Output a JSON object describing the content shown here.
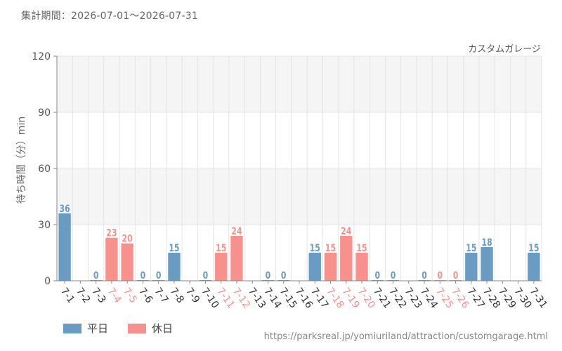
{
  "header": {
    "period": "集計期間：2026-07-01～2026-07-31"
  },
  "legend": {
    "weekday": "平日",
    "holiday": "休日"
  },
  "colors": {
    "weekday": "#6a9bc3",
    "holiday": "#f6918e",
    "grid": "#e4e4e4",
    "band": "#f5f5f5",
    "axis": "#888888"
  },
  "source": "https://parksreal.jp/yomiuriland/attraction/customgarage.html",
  "chart_data": {
    "type": "bar",
    "title": "カスタムガレージ",
    "ylabel": "待ち時間（分）min",
    "xlabel": "",
    "ylim": [
      0,
      120
    ],
    "yticks": [
      0,
      30,
      60,
      90,
      120
    ],
    "grid": true,
    "legend_position": "bottom-left",
    "categories": [
      "7-1",
      "7-2",
      "7-3",
      "7-4",
      "7-5",
      "7-6",
      "7-7",
      "7-8",
      "7-9",
      "7-10",
      "7-11",
      "7-12",
      "7-13",
      "7-14",
      "7-15",
      "7-16",
      "7-17",
      "7-18",
      "7-19",
      "7-20",
      "7-21",
      "7-22",
      "7-23",
      "7-24",
      "7-25",
      "7-26",
      "7-27",
      "7-28",
      "7-29",
      "7-30",
      "7-31"
    ],
    "values": [
      36,
      null,
      0,
      23,
      20,
      0,
      0,
      15,
      null,
      0,
      15,
      24,
      null,
      0,
      0,
      null,
      15,
      15,
      24,
      15,
      0,
      0,
      null,
      0,
      0,
      0,
      15,
      18,
      null,
      null,
      15
    ],
    "day_type": [
      "weekday",
      "weekday",
      "weekday",
      "holiday",
      "holiday",
      "weekday",
      "weekday",
      "weekday",
      "weekday",
      "weekday",
      "holiday",
      "holiday",
      "weekday",
      "weekday",
      "weekday",
      "weekday",
      "weekday",
      "holiday",
      "holiday",
      "holiday",
      "weekday",
      "weekday",
      "weekday",
      "weekday",
      "holiday",
      "holiday",
      "weekday",
      "weekday",
      "weekday",
      "weekday",
      "weekday"
    ],
    "series": [
      {
        "name": "平日",
        "type": "weekday"
      },
      {
        "name": "休日",
        "type": "holiday"
      }
    ]
  }
}
